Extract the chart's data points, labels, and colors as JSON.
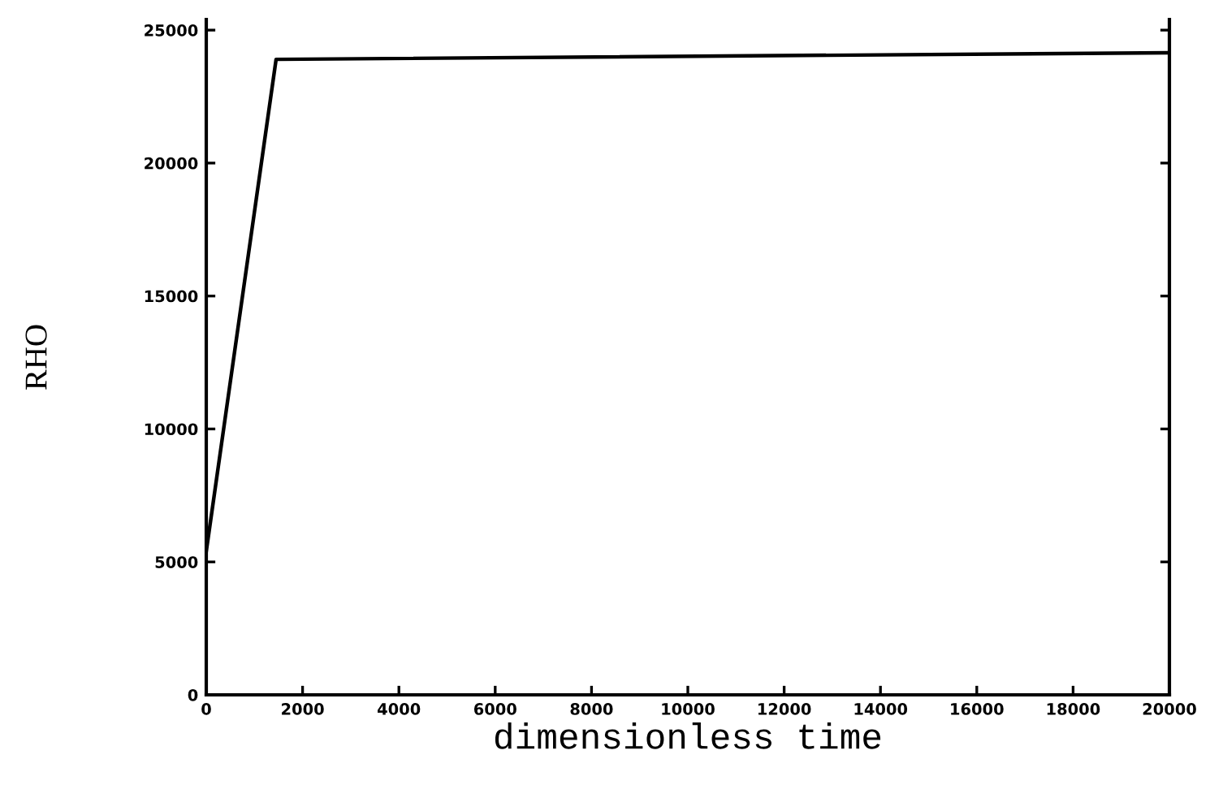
{
  "chart_data": {
    "type": "line",
    "xlabel": "dimensionless time",
    "ylabel": "RHO",
    "x": [
      0,
      1450,
      20000
    ],
    "series": [
      {
        "color": "#000000",
        "values": [
          5400,
          23900,
          24150
        ]
      }
    ],
    "xlim": [
      0,
      20000
    ],
    "ylim": [
      0,
      25400
    ],
    "xticks": [
      0,
      2000,
      4000,
      6000,
      8000,
      10000,
      12000,
      14000,
      16000,
      18000,
      20000
    ],
    "yticks": [
      0,
      5000,
      10000,
      15000,
      20000,
      25000
    ],
    "grid": false,
    "legend": false,
    "marker": "none",
    "line_style": "solid"
  }
}
